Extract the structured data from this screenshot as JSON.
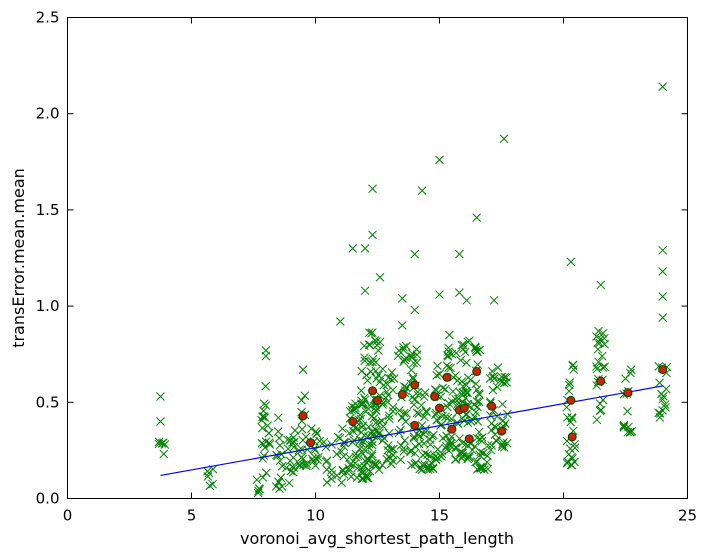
{
  "chart_data": {
    "type": "scatter",
    "xlabel": "voronoi_avg_shortest_path_length",
    "ylabel": "transError.mean.mean",
    "xlim": [
      0,
      25
    ],
    "ylim": [
      0,
      2.5
    ],
    "xticks": [
      0,
      5,
      10,
      15,
      20,
      25
    ],
    "xtick_labels": [
      "0",
      "5",
      "10",
      "15",
      "20",
      "25"
    ],
    "yticks": [
      0,
      0.5,
      1.0,
      1.5,
      2.0,
      2.5
    ],
    "ytick_labels": [
      "0.0",
      "0.5",
      "1.0",
      "1.5",
      "2.0",
      "2.5"
    ],
    "grid": false,
    "colors": {
      "points": "#008000",
      "means": "#cc2200",
      "fit": "#0000ff"
    },
    "fit_line": {
      "x": [
        3.75,
        24.0
      ],
      "y": [
        0.12,
        0.585
      ]
    },
    "mean_points": {
      "x": [
        9.5,
        9.8,
        11.5,
        12.3,
        12.5,
        13.5,
        14.0,
        14.0,
        14.8,
        15.0,
        15.3,
        15.5,
        15.8,
        16.0,
        16.2,
        16.5,
        17.1,
        17.5,
        20.3,
        20.35,
        21.5,
        22.6,
        24.0
      ],
      "y": [
        0.43,
        0.29,
        0.4,
        0.56,
        0.51,
        0.54,
        0.38,
        0.59,
        0.53,
        0.47,
        0.63,
        0.36,
        0.46,
        0.47,
        0.31,
        0.66,
        0.48,
        0.35,
        0.51,
        0.32,
        0.61,
        0.55,
        0.67
      ]
    },
    "column_clusters": [
      {
        "x": 3.75,
        "min": 0.22,
        "max": 0.33,
        "extra": [
          0.4,
          0.53
        ]
      },
      {
        "x": 5.75,
        "min": 0.06,
        "max": 0.17,
        "extra": []
      },
      {
        "x": 7.75,
        "min": 0.02,
        "max": 0.12,
        "extra": []
      },
      {
        "x": 8.0,
        "min": 0.13,
        "max": 0.6,
        "extra": [
          0.74,
          0.77
        ]
      },
      {
        "x": 8.5,
        "min": 0.05,
        "max": 0.35,
        "extra": [
          0.42
        ]
      },
      {
        "x": 9.0,
        "min": 0.08,
        "max": 0.45,
        "extra": []
      },
      {
        "x": 9.5,
        "min": 0.15,
        "max": 0.55,
        "extra": [
          0.67
        ]
      },
      {
        "x": 10.0,
        "min": 0.15,
        "max": 0.45,
        "extra": []
      },
      {
        "x": 10.5,
        "min": 0.08,
        "max": 0.3,
        "extra": []
      },
      {
        "x": 11.0,
        "min": 0.08,
        "max": 0.4,
        "extra": [
          0.92
        ]
      },
      {
        "x": 11.5,
        "min": 0.1,
        "max": 0.6,
        "extra": [
          1.3
        ]
      },
      {
        "x": 11.8,
        "min": 0.15,
        "max": 0.5,
        "extra": []
      },
      {
        "x": 12.0,
        "min": 0.1,
        "max": 0.8,
        "extra": [
          1.08,
          1.3
        ]
      },
      {
        "x": 12.3,
        "min": 0.12,
        "max": 0.9,
        "extra": [
          1.37,
          1.61
        ]
      },
      {
        "x": 12.6,
        "min": 0.15,
        "max": 0.85,
        "extra": [
          1.15
        ]
      },
      {
        "x": 13.0,
        "min": 0.15,
        "max": 0.7,
        "extra": []
      },
      {
        "x": 13.5,
        "min": 0.2,
        "max": 0.8,
        "extra": [
          1.04,
          0.9
        ]
      },
      {
        "x": 14.0,
        "min": 0.15,
        "max": 0.8,
        "extra": [
          0.98,
          1.27
        ]
      },
      {
        "x": 14.3,
        "min": 0.15,
        "max": 0.6,
        "extra": [
          1.6
        ]
      },
      {
        "x": 14.6,
        "min": 0.15,
        "max": 0.5,
        "extra": []
      },
      {
        "x": 15.0,
        "min": 0.2,
        "max": 0.75,
        "extra": [
          1.06,
          1.76
        ]
      },
      {
        "x": 15.4,
        "min": 0.2,
        "max": 0.8,
        "extra": [
          0.85
        ]
      },
      {
        "x": 15.8,
        "min": 0.2,
        "max": 0.8,
        "extra": [
          1.07,
          1.27
        ]
      },
      {
        "x": 16.1,
        "min": 0.2,
        "max": 0.85,
        "extra": [
          1.03
        ]
      },
      {
        "x": 16.5,
        "min": 0.15,
        "max": 0.85,
        "extra": [
          1.46
        ]
      },
      {
        "x": 16.8,
        "min": 0.15,
        "max": 0.4,
        "extra": []
      },
      {
        "x": 17.2,
        "min": 0.2,
        "max": 0.7,
        "extra": [
          1.03
        ]
      },
      {
        "x": 17.6,
        "min": 0.25,
        "max": 0.65,
        "extra": [
          1.87
        ]
      },
      {
        "x": 20.3,
        "min": 0.17,
        "max": 0.73,
        "extra": [
          1.23
        ]
      },
      {
        "x": 21.5,
        "min": 0.4,
        "max": 0.92,
        "extra": [
          0.83,
          1.11
        ]
      },
      {
        "x": 22.6,
        "min": 0.34,
        "max": 0.7,
        "extra": []
      },
      {
        "x": 24.0,
        "min": 0.42,
        "max": 0.75,
        "extra": [
          0.94,
          1.05,
          1.18,
          1.29,
          2.14
        ]
      }
    ]
  }
}
